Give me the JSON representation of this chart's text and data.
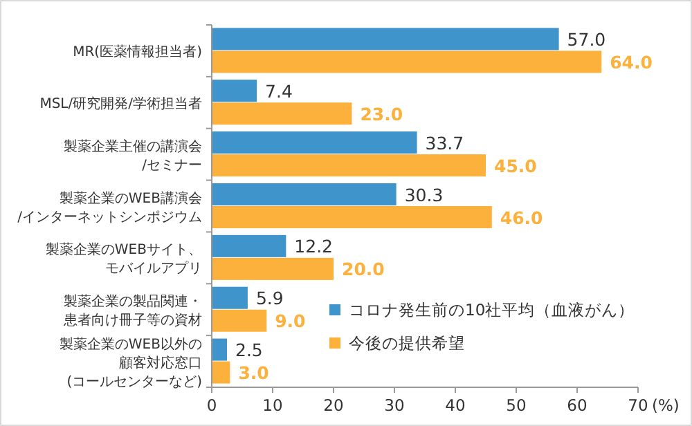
{
  "chart_data": {
    "type": "bar",
    "orientation": "horizontal",
    "xlabel": "(%)",
    "categories": [
      "MR(医薬情報担当者)",
      "MSL/研究開発/学術担当者",
      "製薬企業主催の講演会/セミナー",
      "製薬企業のWEB講演会/インターネットシンポジウム",
      "製薬企業のWEBサイト、モバイルアプリ",
      "製薬企業の製品関連・患者向け冊子等の資材",
      "製薬企業のWEB以外の顧客対応窓口(コールセンターなど)"
    ],
    "series": [
      {
        "name": "コロナ発生前の10社平均（血液がん）",
        "color": "#3f95cb",
        "values": [
          57.0,
          7.4,
          33.7,
          30.3,
          12.2,
          5.9,
          2.5
        ],
        "value_labels": [
          "57.0",
          "7.4",
          "33.7",
          "30.3",
          "12.2",
          "5.9",
          "2.5"
        ]
      },
      {
        "name": "今後の提供希望",
        "color": "#fbb13c",
        "values": [
          64.0,
          23.0,
          45.0,
          46.0,
          20.0,
          9.0,
          3.0
        ],
        "value_labels": [
          "64.0",
          "23.0",
          "45.0",
          "46.0",
          "20.0",
          "9.0",
          "3.0"
        ]
      }
    ],
    "xlim": [
      0,
      70
    ],
    "xticks": [
      0,
      10,
      20,
      30,
      40,
      50,
      60,
      70
    ],
    "legend": "bottom right",
    "grid": false
  }
}
